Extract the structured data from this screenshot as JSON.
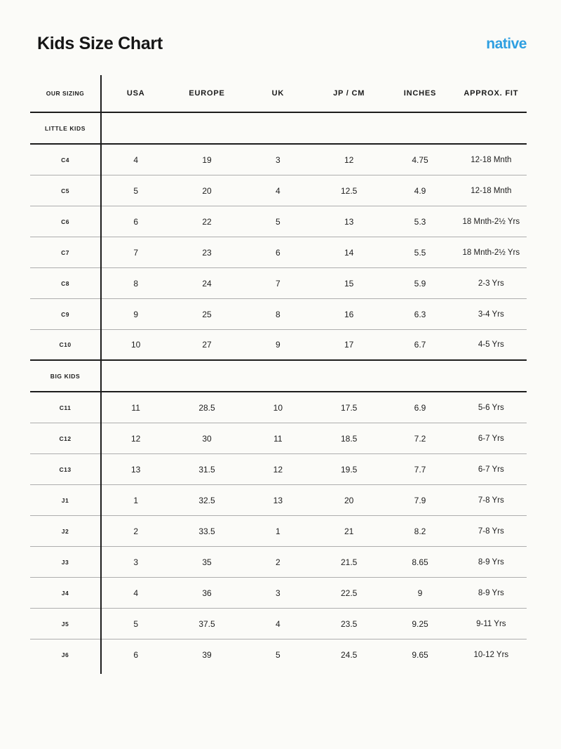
{
  "page": {
    "title": "Kids Size Chart",
    "brand_logo": "native",
    "brand_color": "#2E9FE1",
    "background_color": "#FBFBF8"
  },
  "table": {
    "columns": [
      "OUR SIZING",
      "USA",
      "EUROPE",
      "UK",
      "JP / CM",
      "INCHES",
      "APPROX. FIT"
    ],
    "sections": [
      {
        "label": "LITTLE KIDS",
        "rows": [
          {
            "size": "C4",
            "values": [
              "4",
              "19",
              "3",
              "12",
              "4.75",
              "12-18 Mnth"
            ]
          },
          {
            "size": "C5",
            "values": [
              "5",
              "20",
              "4",
              "12.5",
              "4.9",
              "12-18 Mnth"
            ]
          },
          {
            "size": "C6",
            "values": [
              "6",
              "22",
              "5",
              "13",
              "5.3",
              "18 Mnth-2½ Yrs"
            ]
          },
          {
            "size": "C7",
            "values": [
              "7",
              "23",
              "6",
              "14",
              "5.5",
              "18 Mnth-2½ Yrs"
            ]
          },
          {
            "size": "C8",
            "values": [
              "8",
              "24",
              "7",
              "15",
              "5.9",
              "2-3 Yrs"
            ]
          },
          {
            "size": "C9",
            "values": [
              "9",
              "25",
              "8",
              "16",
              "6.3",
              "3-4 Yrs"
            ]
          },
          {
            "size": "C10",
            "values": [
              "10",
              "27",
              "9",
              "17",
              "6.7",
              "4-5 Yrs"
            ]
          }
        ]
      },
      {
        "label": "BIG KIDS",
        "rows": [
          {
            "size": "C11",
            "values": [
              "11",
              "28.5",
              "10",
              "17.5",
              "6.9",
              "5-6 Yrs"
            ]
          },
          {
            "size": "C12",
            "values": [
              "12",
              "30",
              "11",
              "18.5",
              "7.2",
              "6-7 Yrs"
            ]
          },
          {
            "size": "C13",
            "values": [
              "13",
              "31.5",
              "12",
              "19.5",
              "7.7",
              "6-7 Yrs"
            ]
          },
          {
            "size": "J1",
            "values": [
              "1",
              "32.5",
              "13",
              "20",
              "7.9",
              "7-8 Yrs"
            ]
          },
          {
            "size": "J2",
            "values": [
              "2",
              "33.5",
              "1",
              "21",
              "8.2",
              "7-8 Yrs"
            ]
          },
          {
            "size": "J3",
            "values": [
              "3",
              "35",
              "2",
              "21.5",
              "8.65",
              "8-9 Yrs"
            ]
          },
          {
            "size": "J4",
            "values": [
              "4",
              "36",
              "3",
              "22.5",
              "9",
              "8-9 Yrs"
            ]
          },
          {
            "size": "J5",
            "values": [
              "5",
              "37.5",
              "4",
              "23.5",
              "9.25",
              "9-11 Yrs"
            ]
          },
          {
            "size": "J6",
            "values": [
              "6",
              "39",
              "5",
              "24.5",
              "9.65",
              "10-12 Yrs"
            ]
          }
        ]
      }
    ]
  }
}
